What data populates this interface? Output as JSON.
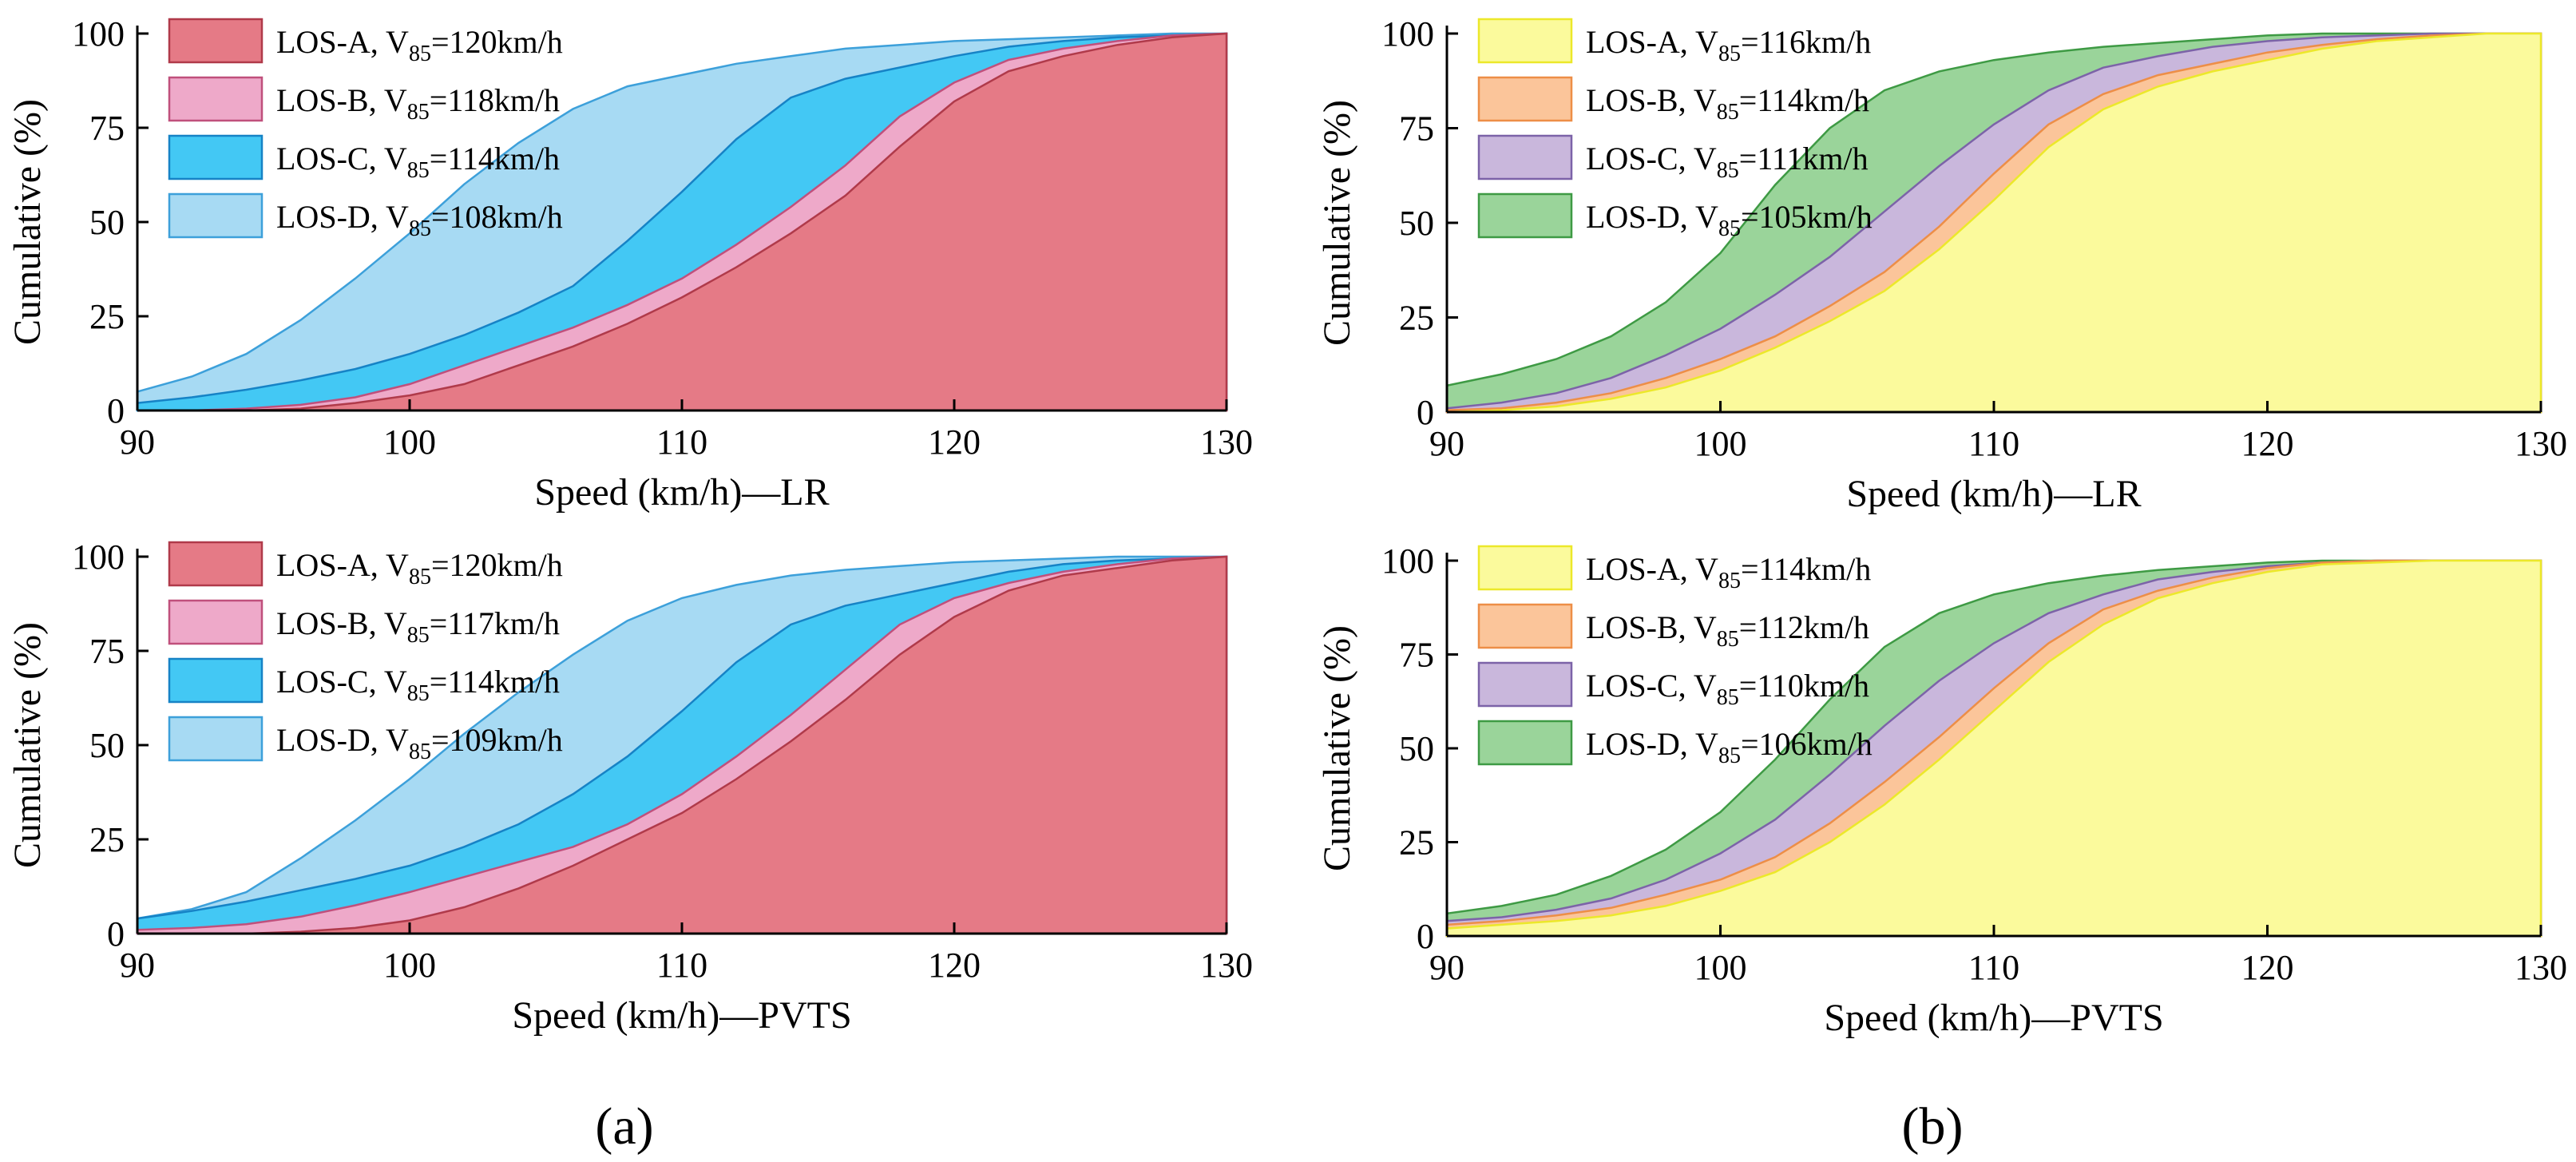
{
  "panel_labels": [
    "(a)",
    "(b)"
  ],
  "colors": {
    "los_a_red": "#e57a86",
    "los_a_red_stroke": "#b03a4a",
    "los_b_pink": "#eea9c9",
    "los_b_pink_stroke": "#c0507c",
    "los_c_blue": "#43c8f4",
    "los_c_blue_stroke": "#1683c6",
    "los_d_lightblue": "#a7daf3",
    "los_d_lightblue_stroke": "#3da0da",
    "los_a_yellow": "#fbfa9c",
    "los_a_yellow_stroke": "#ece82a",
    "los_b_orange": "#fbc59a",
    "los_b_orange_stroke": "#ed8e47",
    "los_c_purple": "#c9b7dc",
    "los_c_purple_stroke": "#7c63a8",
    "los_d_green": "#9ad49a",
    "los_d_green_stroke": "#3e9a44"
  },
  "chart_data": [
    {
      "id": "a-top",
      "type": "area",
      "xlabel": "Speed (km/h)—LR",
      "ylabel": "Cumulative (%)",
      "xlim": [
        90,
        130
      ],
      "ylim": [
        0,
        100
      ],
      "xticks": [
        90,
        100,
        110,
        120,
        130
      ],
      "yticks": [
        0,
        25,
        50,
        75,
        100
      ],
      "x": [
        90,
        92,
        94,
        96,
        98,
        100,
        102,
        104,
        106,
        108,
        110,
        112,
        114,
        116,
        118,
        120,
        122,
        124,
        126,
        128,
        130
      ],
      "series": [
        {
          "name": "LOS-A",
          "v85": "120km/h",
          "fill": "los_a_red",
          "stroke": "los_a_red_stroke",
          "values": [
            0,
            0,
            0,
            0.5,
            2,
            4,
            7,
            12,
            17,
            23,
            30,
            38,
            47,
            57,
            70,
            82,
            90,
            94,
            97,
            99,
            100
          ]
        },
        {
          "name": "LOS-B",
          "v85": "118km/h",
          "fill": "los_b_pink",
          "stroke": "los_b_pink_stroke",
          "values": [
            0,
            0,
            0.5,
            1.5,
            3.5,
            7,
            12,
            17,
            22,
            28,
            35,
            44,
            54,
            65,
            78,
            87,
            93,
            96,
            98,
            99.5,
            100
          ]
        },
        {
          "name": "LOS-C",
          "v85": "114km/h",
          "fill": "los_c_blue",
          "stroke": "los_c_blue_stroke",
          "values": [
            2,
            3.5,
            5.5,
            8,
            11,
            15,
            20,
            26,
            33,
            45,
            58,
            72,
            83,
            88,
            91,
            94,
            96.5,
            98,
            99,
            99.5,
            100
          ]
        },
        {
          "name": "LOS-D",
          "v85": "108km/h",
          "fill": "los_d_lightblue",
          "stroke": "los_d_lightblue_stroke",
          "values": [
            5,
            9,
            15,
            24,
            35,
            47,
            60,
            71,
            80,
            86,
            89,
            92,
            94,
            96,
            97,
            98,
            98.5,
            99,
            99.5,
            100,
            100
          ]
        }
      ]
    },
    {
      "id": "a-bottom",
      "type": "area",
      "xlabel": "Speed (km/h)—PVTS",
      "ylabel": "Cumulative (%)",
      "xlim": [
        90,
        130
      ],
      "ylim": [
        0,
        100
      ],
      "xticks": [
        90,
        100,
        110,
        120,
        130
      ],
      "yticks": [
        0,
        25,
        50,
        75,
        100
      ],
      "x": [
        90,
        92,
        94,
        96,
        98,
        100,
        102,
        104,
        106,
        108,
        110,
        112,
        114,
        116,
        118,
        120,
        122,
        124,
        126,
        128,
        130
      ],
      "series": [
        {
          "name": "LOS-A",
          "v85": "120km/h",
          "fill": "los_a_red",
          "stroke": "los_a_red_stroke",
          "values": [
            0,
            0,
            0,
            0.5,
            1.5,
            3.5,
            7,
            12,
            18,
            25,
            32,
            41,
            51,
            62,
            74,
            84,
            91,
            95,
            97,
            99,
            100
          ]
        },
        {
          "name": "LOS-B",
          "v85": "117km/h",
          "fill": "los_b_pink",
          "stroke": "los_b_pink_stroke",
          "values": [
            1,
            1.5,
            2.5,
            4.5,
            7.5,
            11,
            15,
            19,
            23,
            29,
            37,
            47,
            58,
            70,
            82,
            89,
            93,
            96,
            98,
            99.5,
            100
          ]
        },
        {
          "name": "LOS-C",
          "v85": "114km/h",
          "fill": "los_c_blue",
          "stroke": "los_c_blue_stroke",
          "values": [
            4,
            6,
            8.5,
            11.5,
            14.5,
            18,
            23,
            29,
            37,
            47,
            59,
            72,
            82,
            87,
            90,
            93,
            96,
            98,
            99,
            99.5,
            100
          ]
        },
        {
          "name": "LOS-D",
          "v85": "109km/h",
          "fill": "los_d_lightblue",
          "stroke": "los_d_lightblue_stroke",
          "values": [
            4,
            6.5,
            11,
            20,
            30,
            41,
            53,
            64,
            74,
            83,
            89,
            92.5,
            95,
            96.5,
            97.5,
            98.5,
            99,
            99.5,
            100,
            100,
            100
          ]
        }
      ]
    },
    {
      "id": "b-top",
      "type": "area",
      "xlabel": "Speed (km/h)—LR",
      "ylabel": "Cumulative (%)",
      "xlim": [
        90,
        130
      ],
      "ylim": [
        0,
        100
      ],
      "xticks": [
        90,
        100,
        110,
        120,
        130
      ],
      "yticks": [
        0,
        25,
        50,
        75,
        100
      ],
      "x": [
        90,
        92,
        94,
        96,
        98,
        100,
        102,
        104,
        106,
        108,
        110,
        112,
        114,
        116,
        118,
        120,
        122,
        124,
        126,
        128,
        130
      ],
      "series": [
        {
          "name": "LOS-A",
          "v85": "116km/h",
          "fill": "los_a_yellow",
          "stroke": "los_a_yellow_stroke",
          "values": [
            0,
            0.5,
            1.5,
            3.5,
            6.5,
            11,
            17,
            24,
            32,
            43,
            56,
            70,
            80,
            86,
            90,
            93,
            96,
            98,
            99,
            100,
            100
          ]
        },
        {
          "name": "LOS-B",
          "v85": "114km/h",
          "fill": "los_b_orange",
          "stroke": "los_b_orange_stroke",
          "values": [
            0.5,
            1,
            2.5,
            5,
            9,
            14,
            20,
            28,
            37,
            49,
            63,
            76,
            84,
            89,
            92,
            95,
            97,
            98.5,
            99.5,
            100,
            100
          ]
        },
        {
          "name": "LOS-C",
          "v85": "111km/h",
          "fill": "los_c_purple",
          "stroke": "los_c_purple_stroke",
          "values": [
            1,
            2.5,
            5,
            9,
            15,
            22,
            31,
            41,
            53,
            65,
            76,
            85,
            91,
            94,
            96.5,
            98,
            99,
            99.5,
            100,
            100,
            100
          ]
        },
        {
          "name": "LOS-D",
          "v85": "105km/h",
          "fill": "los_d_green",
          "stroke": "los_d_green_stroke",
          "values": [
            7,
            10,
            14,
            20,
            29,
            42,
            60,
            75,
            85,
            90,
            93,
            95,
            96.5,
            97.5,
            98.5,
            99.5,
            100,
            100,
            100,
            100,
            100
          ]
        }
      ]
    },
    {
      "id": "b-bottom",
      "type": "area",
      "xlabel": "Speed (km/h)—PVTS",
      "ylabel": "Cumulative (%)",
      "xlim": [
        90,
        130
      ],
      "ylim": [
        0,
        100
      ],
      "xticks": [
        90,
        100,
        110,
        120,
        130
      ],
      "yticks": [
        0,
        25,
        50,
        75,
        100
      ],
      "x": [
        90,
        92,
        94,
        96,
        98,
        100,
        102,
        104,
        106,
        108,
        110,
        112,
        114,
        116,
        118,
        120,
        122,
        124,
        126,
        128,
        130
      ],
      "series": [
        {
          "name": "LOS-A",
          "v85": "114km/h",
          "fill": "los_a_yellow",
          "stroke": "los_a_yellow_stroke",
          "values": [
            2,
            3,
            4,
            5.5,
            8,
            12,
            17,
            25,
            35,
            47,
            60,
            73,
            83,
            90,
            94,
            97,
            99,
            99.5,
            100,
            100,
            100
          ]
        },
        {
          "name": "LOS-B",
          "v85": "112km/h",
          "fill": "los_b_orange",
          "stroke": "los_b_orange_stroke",
          "values": [
            3,
            4,
            5.5,
            7.5,
            11,
            15,
            21,
            30,
            41,
            53,
            66,
            78,
            87,
            92,
            95.5,
            98,
            99.5,
            100,
            100,
            100,
            100
          ]
        },
        {
          "name": "LOS-C",
          "v85": "110km/h",
          "fill": "los_c_purple",
          "stroke": "los_c_purple_stroke",
          "values": [
            4,
            5,
            7,
            10,
            15,
            22,
            31,
            43,
            56,
            68,
            78,
            86,
            91,
            95,
            97,
            98.5,
            99.5,
            100,
            100,
            100,
            100
          ]
        },
        {
          "name": "LOS-D",
          "v85": "106km/h",
          "fill": "los_d_green",
          "stroke": "los_d_green_stroke",
          "values": [
            6,
            8,
            11,
            16,
            23,
            33,
            47,
            63,
            77,
            86,
            91,
            94,
            96,
            97.5,
            98.5,
            99.5,
            100,
            100,
            100,
            100,
            100
          ]
        }
      ]
    }
  ]
}
